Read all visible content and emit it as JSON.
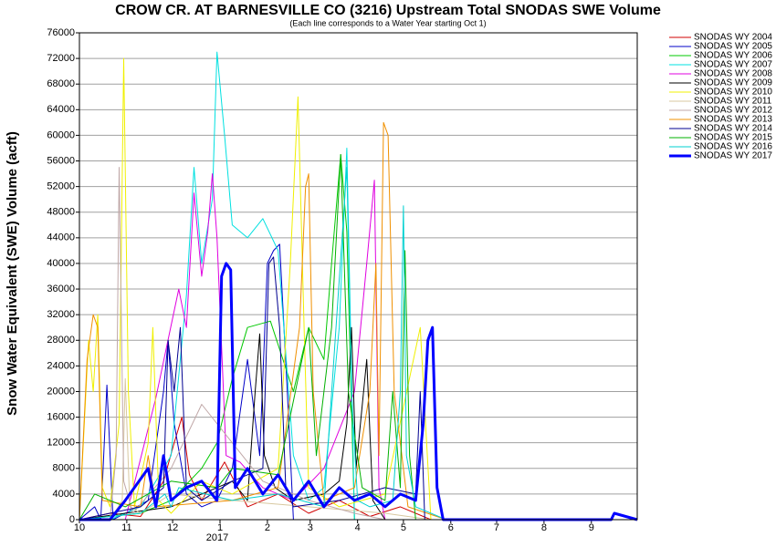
{
  "chart_data": {
    "type": "line",
    "title": "CROW CR. AT BARNESVILLE CO (3216) Upstream Total SNODAS SWE Volume",
    "subtitle": "(Each line corresponds to a Water Year starting Oct 1)",
    "y_label": "Snow Water Equivalent (SWE) Volume (acft)",
    "x_sublabel": "2017",
    "xlim": [
      0,
      365
    ],
    "xticks": [
      {
        "value": 0,
        "label": "10"
      },
      {
        "value": 31,
        "label": "11"
      },
      {
        "value": 61,
        "label": "12"
      },
      {
        "value": 92,
        "label": "1"
      },
      {
        "value": 123,
        "label": "2"
      },
      {
        "value": 151,
        "label": "3"
      },
      {
        "value": 182,
        "label": "4"
      },
      {
        "value": 212,
        "label": "5"
      },
      {
        "value": 243,
        "label": "6"
      },
      {
        "value": 273,
        "label": "7"
      },
      {
        "value": 304,
        "label": "8"
      },
      {
        "value": 335,
        "label": "9"
      }
    ],
    "ylim": [
      0,
      76000
    ],
    "yticks": [
      0,
      4000,
      8000,
      12000,
      16000,
      20000,
      24000,
      28000,
      32000,
      36000,
      40000,
      44000,
      48000,
      52000,
      56000,
      60000,
      64000,
      68000,
      72000,
      76000
    ],
    "grid": true,
    "series": [
      {
        "name": "SNODAS WY 2004",
        "color": "#d00000",
        "x": [
          0,
          20,
          40,
          55,
          62,
          67,
          72,
          80,
          95,
          110,
          130,
          150,
          170,
          190,
          210,
          230,
          250
        ],
        "values": [
          0,
          1000,
          500,
          6000,
          12000,
          16000,
          7000,
          3000,
          9000,
          2000,
          4000,
          1000,
          3000,
          500,
          2000,
          0,
          0
        ]
      },
      {
        "name": "SNODAS WY 2005",
        "color": "#0000c8",
        "x": [
          0,
          10,
          14,
          18,
          22,
          30,
          45,
          55,
          58,
          62,
          70,
          80,
          90,
          100,
          110,
          118,
          123,
          127,
          131,
          136,
          140,
          170,
          200,
          260
        ],
        "values": [
          0,
          2000,
          0,
          21000,
          0,
          1000,
          3000,
          20000,
          28000,
          15000,
          4000,
          2000,
          3000,
          8000,
          25000,
          10000,
          40000,
          42000,
          43000,
          20000,
          0,
          0,
          0,
          0
        ]
      },
      {
        "name": "SNODAS WY 2006",
        "color": "#00c800",
        "x": [
          0,
          40,
          60,
          80,
          90,
          100,
          110,
          125,
          140,
          150,
          160,
          165,
          171,
          175,
          180,
          190
        ],
        "values": [
          0,
          1000,
          3000,
          8000,
          12000,
          22000,
          30000,
          31000,
          20000,
          30000,
          25000,
          40000,
          57000,
          45000,
          0,
          0
        ]
      },
      {
        "name": "SNODAS WY 2007",
        "color": "#00e0e0",
        "x": [
          0,
          20,
          40,
          60,
          70,
          75,
          80,
          87,
          90,
          95,
          100,
          110,
          120,
          130,
          140,
          150,
          160,
          170,
          175,
          180,
          200
        ],
        "values": [
          0,
          0,
          2000,
          10000,
          35000,
          55000,
          40000,
          50000,
          73000,
          60000,
          46000,
          44000,
          47000,
          42000,
          10000,
          3000,
          5000,
          30000,
          58000,
          0,
          0
        ]
      },
      {
        "name": "SNODAS WY 2008",
        "color": "#e000e0",
        "x": [
          0,
          30,
          50,
          65,
          70,
          75,
          80,
          84,
          87,
          90,
          96,
          105,
          120,
          140,
          160,
          180,
          188,
          193,
          196,
          200,
          220
        ],
        "values": [
          0,
          0,
          19000,
          36000,
          30000,
          51000,
          38000,
          45000,
          54000,
          44000,
          10000,
          9000,
          5000,
          3000,
          8000,
          20000,
          40000,
          53000,
          5000,
          0,
          0
        ]
      },
      {
        "name": "SNODAS WY 2009",
        "color": "#000000",
        "x": [
          0,
          30,
          60,
          80,
          100,
          110,
          115,
          118,
          121,
          128,
          140,
          160,
          170,
          175,
          178,
          181,
          188,
          192,
          200,
          220
        ],
        "values": [
          0,
          1000,
          2000,
          4000,
          6000,
          3000,
          20000,
          29000,
          10000,
          5000,
          3000,
          4000,
          6000,
          15000,
          30000,
          8000,
          25000,
          3000,
          0,
          0
        ]
      },
      {
        "name": "SNODAS WY 2010",
        "color": "#f0f000",
        "x": [
          0,
          6,
          9,
          12,
          15,
          20,
          26,
          29,
          32,
          36,
          45,
          48,
          52,
          60,
          80,
          100,
          130,
          138,
          143,
          147,
          150,
          170,
          200,
          223,
          230,
          240
        ],
        "values": [
          0,
          28000,
          20000,
          32000,
          5000,
          2000,
          15000,
          72000,
          20000,
          2000,
          12000,
          30000,
          3000,
          1000,
          6000,
          4000,
          8000,
          40000,
          66000,
          30000,
          5000,
          2000,
          4000,
          30000,
          0,
          0
        ]
      },
      {
        "name": "SNODAS WY 2011",
        "color": "#d8c8a0",
        "x": [
          0,
          20,
          28,
          30,
          33,
          40,
          60,
          100,
          150,
          200,
          230
        ],
        "values": [
          0,
          0,
          3000,
          22000,
          2000,
          1000,
          4000,
          3000,
          2000,
          1000,
          0
        ]
      },
      {
        "name": "SNODAS WY 2012",
        "color": "#c0a8a8",
        "x": [
          0,
          20,
          24,
          26,
          29,
          35,
          60,
          80,
          100,
          120,
          150,
          180,
          200
        ],
        "values": [
          0,
          0,
          10000,
          55000,
          6000,
          1000,
          8000,
          18000,
          12000,
          6000,
          3000,
          1000,
          0
        ]
      },
      {
        "name": "SNODAS WY 2013",
        "color": "#f09000",
        "x": [
          0,
          5,
          9,
          12,
          15,
          40,
          45,
          50,
          100,
          130,
          144,
          148,
          150,
          153,
          160,
          180,
          190,
          194,
          196,
          199,
          202,
          206,
          215,
          240
        ],
        "values": [
          0,
          25000,
          32000,
          30000,
          3000,
          2000,
          10000,
          2000,
          3000,
          5000,
          30000,
          52000,
          54000,
          20000,
          3000,
          5000,
          20000,
          40000,
          10000,
          62000,
          60000,
          20000,
          2000,
          0
        ]
      },
      {
        "name": "SNODAS WY 2014",
        "color": "#000090",
        "x": [
          0,
          40,
          55,
          58,
          62,
          66,
          70,
          80,
          100,
          120,
          124,
          127,
          131,
          135,
          140,
          170,
          200,
          220,
          223,
          226,
          230
        ],
        "values": [
          0,
          2000,
          5000,
          28000,
          20000,
          30000,
          5000,
          3000,
          6000,
          8000,
          40000,
          41000,
          30000,
          5000,
          2000,
          3000,
          5000,
          4000,
          20000,
          0,
          0
        ]
      },
      {
        "name": "SNODAS WY 2015",
        "color": "#00b000",
        "x": [
          0,
          10,
          30,
          60,
          90,
          100,
          130,
          150,
          155,
          165,
          171,
          176,
          185,
          200,
          205,
          210,
          213,
          216,
          220,
          230
        ],
        "values": [
          0,
          4000,
          2000,
          6000,
          5000,
          8000,
          7000,
          30000,
          10000,
          30000,
          57000,
          20000,
          5000,
          3000,
          20000,
          5000,
          42000,
          10000,
          0,
          0
        ]
      },
      {
        "name": "SNODAS WY 2016",
        "color": "#00d0d0",
        "x": [
          0,
          40,
          56,
          60,
          65,
          100,
          130,
          160,
          175,
          178,
          182,
          190,
          205,
          210,
          212,
          214,
          220,
          240
        ],
        "values": [
          0,
          1000,
          4000,
          2000,
          5000,
          3000,
          4000,
          2000,
          55000,
          20000,
          3000,
          2000,
          3000,
          20000,
          49000,
          10000,
          2000,
          0
        ]
      },
      {
        "name": "SNODAS WY 2017",
        "color": "#0000ff",
        "width": 3,
        "x": [
          0,
          20,
          30,
          45,
          50,
          55,
          60,
          65,
          70,
          80,
          90,
          93,
          96,
          99,
          102,
          110,
          120,
          130,
          140,
          150,
          160,
          170,
          180,
          190,
          200,
          210,
          220,
          225,
          228,
          231,
          234,
          238,
          250,
          300,
          348,
          350,
          365
        ],
        "values": [
          0,
          0,
          3000,
          8000,
          2000,
          10000,
          3000,
          4000,
          5000,
          6000,
          3000,
          38000,
          40000,
          39000,
          5000,
          8000,
          4000,
          7000,
          3000,
          6000,
          2000,
          5000,
          3000,
          4000,
          2000,
          4000,
          3000,
          15000,
          28000,
          30000,
          5000,
          0,
          0,
          0,
          0,
          1000,
          0
        ]
      }
    ]
  }
}
